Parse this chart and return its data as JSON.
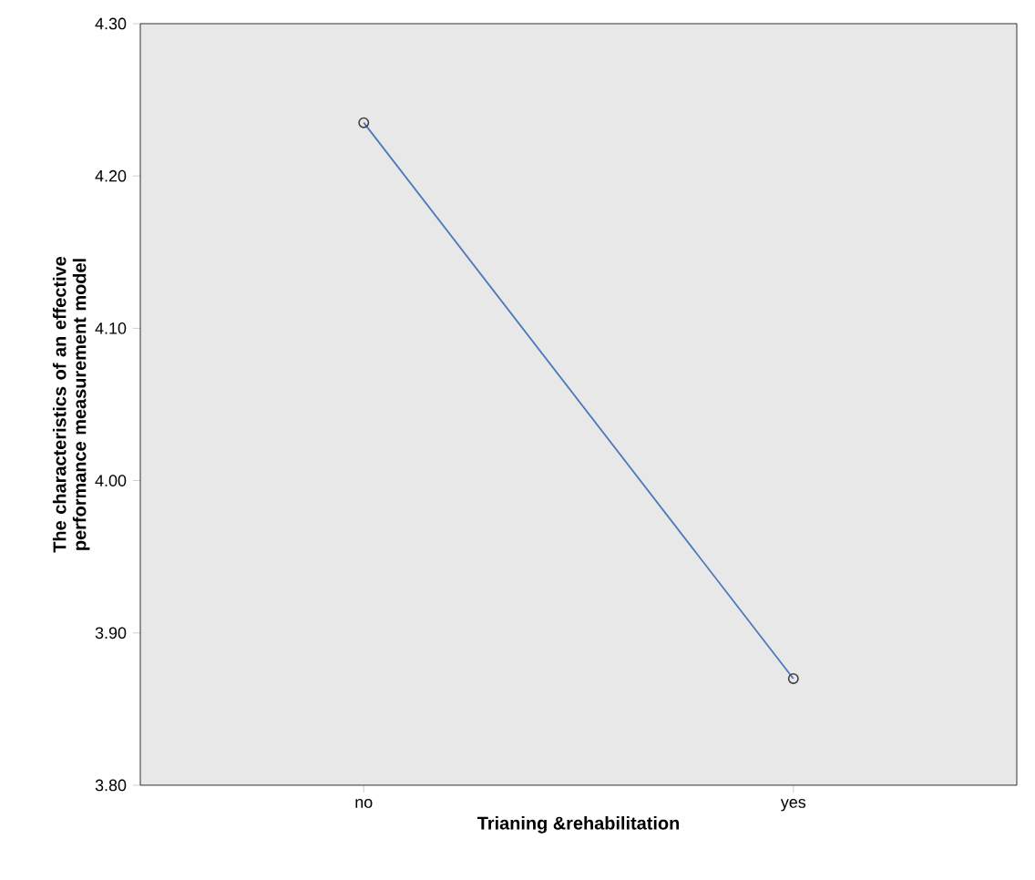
{
  "chart_data": {
    "type": "line",
    "xlabel": "Trianing &rehabilitation",
    "ylabel": "The characteristics of an effective performance measurement model",
    "categories": [
      "no",
      "yes"
    ],
    "series": [
      {
        "color": "#4a78b8",
        "values": [
          4.235,
          3.87
        ]
      }
    ],
    "ylim": [
      3.8,
      4.3
    ],
    "yticks": [
      {
        "value": 3.8,
        "label": "3.80"
      },
      {
        "value": 3.9,
        "label": "3.90"
      },
      {
        "value": 4.0,
        "label": "4.00"
      },
      {
        "value": 4.1,
        "label": "4.10"
      },
      {
        "value": 4.2,
        "label": "4.20"
      },
      {
        "value": 4.3,
        "label": "4.30"
      }
    ],
    "marker": "circle",
    "line_style": "solid",
    "grid": false,
    "legend": false
  }
}
